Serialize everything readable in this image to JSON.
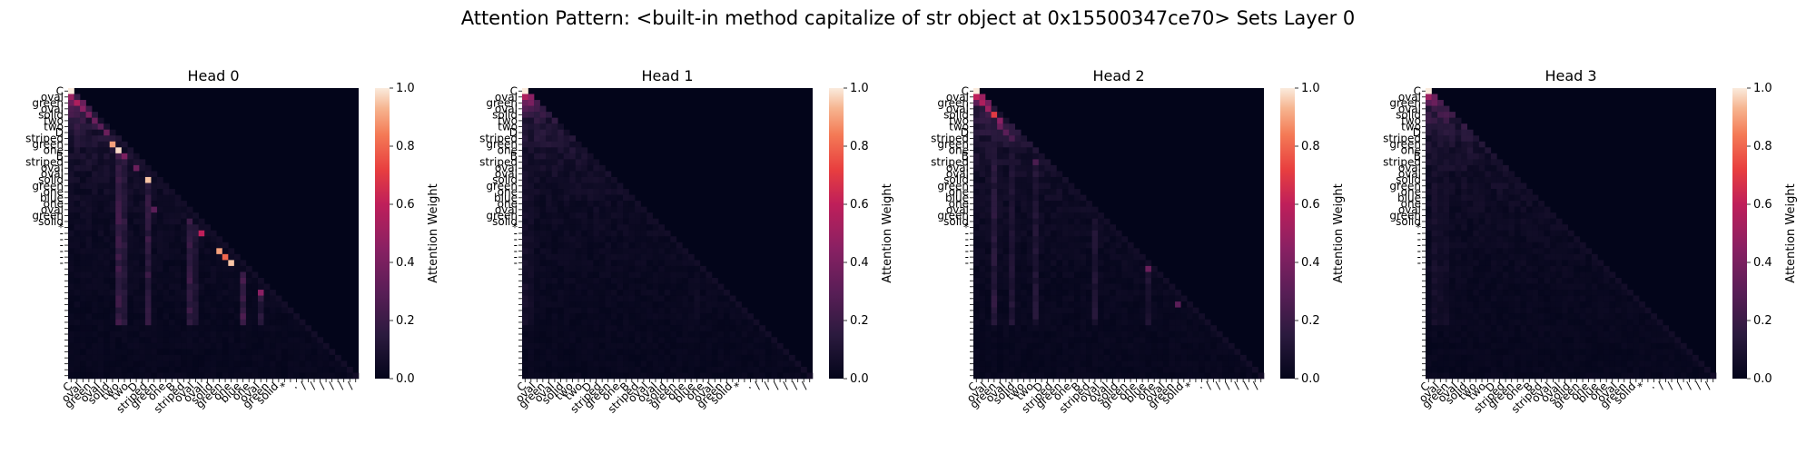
{
  "figure": {
    "suptitle": "Attention Pattern: <built-in method capitalize of str object at 0x15500347ce70> Sets Layer 0"
  },
  "chart_data": {
    "type": "heatmap",
    "colormap": "rocket",
    "colorbar": {
      "label": "Attention Weight",
      "range": [
        0,
        1
      ],
      "ticks": [
        "0.0",
        "0.2",
        "0.4",
        "0.6",
        "0.8",
        "1.0"
      ]
    },
    "grid": false,
    "sequence_length": 49,
    "y_tick_labels": [
      "C",
      "oval",
      "green",
      "oval",
      "solid",
      "two",
      "two",
      "D",
      "striped",
      "green",
      "one",
      "B",
      "striped",
      "oval",
      "oval",
      "solid",
      "green",
      "one",
      "blue",
      "one",
      "oval",
      "green",
      "solid",
      "*",
      "-",
      "-",
      "-",
      "-",
      "-",
      "-"
    ],
    "x_tick_labels": [
      "C",
      "oval",
      "green",
      "oval",
      "solid",
      "two",
      "two",
      "D",
      "striped",
      "green",
      "one",
      "B",
      "striped",
      "oval",
      "oval",
      "solid",
      "green",
      "one",
      "blue",
      "one",
      "oval",
      "green",
      "solid",
      "*",
      ".",
      "/",
      "/",
      "/",
      "/",
      "/",
      "/"
    ],
    "heads": [
      {
        "title": "Head 0",
        "highlights": [
          [
            0,
            0,
            1.0
          ],
          [
            1,
            0,
            0.5
          ],
          [
            2,
            1,
            0.55
          ],
          [
            3,
            2,
            0.45
          ],
          [
            4,
            3,
            0.4
          ],
          [
            5,
            4,
            0.35
          ],
          [
            6,
            5,
            0.3
          ],
          [
            7,
            6,
            0.35
          ],
          [
            9,
            7,
            0.9
          ],
          [
            10,
            8,
            0.98
          ],
          [
            11,
            9,
            0.4
          ],
          [
            13,
            11,
            0.35
          ],
          [
            15,
            13,
            0.95
          ],
          [
            20,
            14,
            0.3
          ],
          [
            24,
            22,
            0.6
          ],
          [
            27,
            25,
            0.9
          ],
          [
            28,
            26,
            0.8
          ],
          [
            29,
            27,
            0.95
          ],
          [
            34,
            32,
            0.45
          ]
        ],
        "column_stripes": [
          [
            8,
            0.2
          ],
          [
            9,
            0.15
          ],
          [
            13,
            0.18
          ],
          [
            20,
            0.2
          ],
          [
            21,
            0.12
          ],
          [
            29,
            0.22
          ],
          [
            32,
            0.15
          ]
        ]
      },
      {
        "title": "Head 1",
        "highlights": [
          [
            0,
            0,
            1.0
          ],
          [
            1,
            0,
            0.55
          ],
          [
            1,
            1,
            0.45
          ],
          [
            2,
            0,
            0.35
          ],
          [
            2,
            1,
            0.4
          ],
          [
            3,
            1,
            0.25
          ],
          [
            3,
            2,
            0.22
          ],
          [
            4,
            2,
            0.15
          ]
        ],
        "column_stripes": [
          [
            0,
            0.08
          ],
          [
            1,
            0.06
          ],
          [
            29,
            0.05
          ]
        ]
      },
      {
        "title": "Head 2",
        "highlights": [
          [
            0,
            0,
            1.0
          ],
          [
            1,
            0,
            0.6
          ],
          [
            1,
            1,
            0.5
          ],
          [
            2,
            1,
            0.55
          ],
          [
            3,
            2,
            0.5
          ],
          [
            4,
            3,
            0.7
          ],
          [
            5,
            4,
            0.45
          ],
          [
            6,
            4,
            0.35
          ],
          [
            7,
            5,
            0.3
          ],
          [
            8,
            6,
            0.25
          ],
          [
            12,
            10,
            0.25
          ],
          [
            30,
            29,
            0.35
          ],
          [
            36,
            34,
            0.3
          ]
        ],
        "column_stripes": [
          [
            3,
            0.15
          ],
          [
            6,
            0.12
          ],
          [
            10,
            0.12
          ],
          [
            20,
            0.12
          ],
          [
            29,
            0.1
          ]
        ]
      },
      {
        "title": "Head 3",
        "highlights": [
          [
            0,
            0,
            1.0
          ],
          [
            1,
            0,
            0.5
          ],
          [
            1,
            1,
            0.35
          ],
          [
            2,
            0,
            0.3
          ],
          [
            2,
            1,
            0.35
          ],
          [
            2,
            2,
            0.25
          ],
          [
            3,
            1,
            0.2
          ],
          [
            3,
            2,
            0.18
          ]
        ],
        "column_stripes": [
          [
            1,
            0.08
          ],
          [
            2,
            0.06
          ],
          [
            3,
            0.06
          ]
        ]
      }
    ]
  }
}
